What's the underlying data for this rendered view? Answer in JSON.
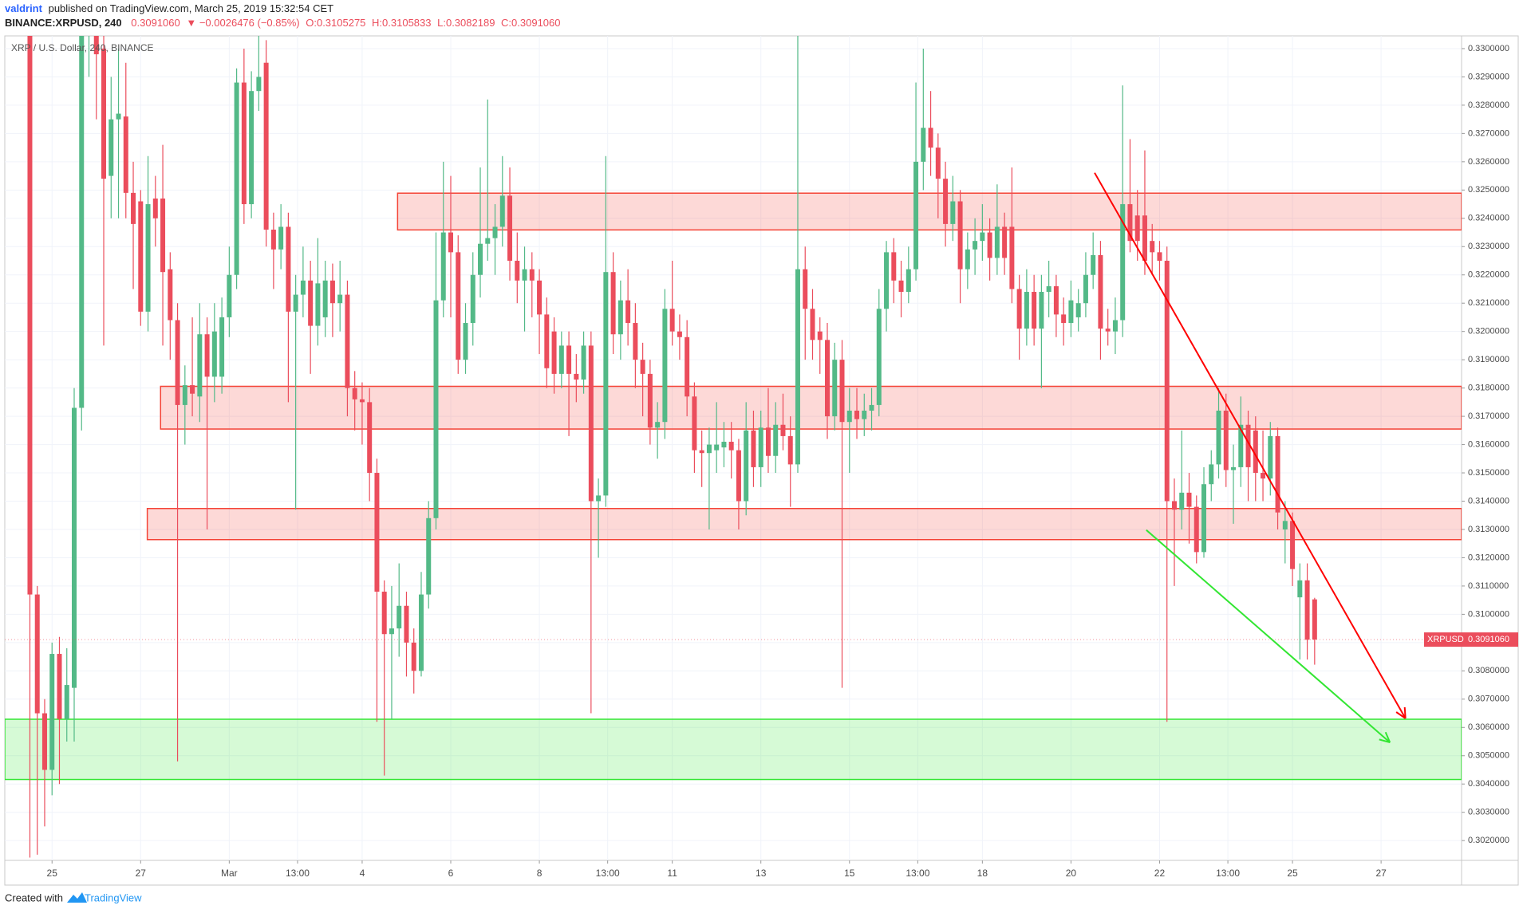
{
  "header": {
    "author": "valdrint",
    "published": "published on TradingView.com, March 25, 2019 15:32:54 CET",
    "symbol": "BINANCE:XRPUSD, 240",
    "price": "0.3091060",
    "change": "▼ −0.0026476 (−0.85%)",
    "open": "O:0.3105275",
    "high": "H:0.3105833",
    "low": "L:0.3082189",
    "close": "C:0.3091060"
  },
  "footer": {
    "created": "Created with",
    "brand": "TradingView"
  },
  "chart_data": {
    "type": "candlestick",
    "title": "XRP / U.S. Dollar, 240, BINANCE",
    "up_color": "#53b987",
    "down_color": "#eb4d5c",
    "grid": true,
    "xlim": [
      -3.4,
      193.9
    ],
    "ylim": [
      0.3013,
      0.33045
    ],
    "xticks": [
      {
        "value": 3,
        "label": "25"
      },
      {
        "value": 15,
        "label": "27"
      },
      {
        "value": 27,
        "label": "Mar"
      },
      {
        "value": 36.25,
        "label": "13:00"
      },
      {
        "value": 45,
        "label": "4"
      },
      {
        "value": 57,
        "label": "6"
      },
      {
        "value": 69,
        "label": "8"
      },
      {
        "value": 78.25,
        "label": "13:00"
      },
      {
        "value": 87,
        "label": "11"
      },
      {
        "value": 99,
        "label": "13"
      },
      {
        "value": 111,
        "label": "15"
      },
      {
        "value": 120.25,
        "label": "13:00"
      },
      {
        "value": 129,
        "label": "18"
      },
      {
        "value": 141,
        "label": "20"
      },
      {
        "value": 153,
        "label": "22"
      },
      {
        "value": 162.25,
        "label": "13:00"
      },
      {
        "value": 171,
        "label": "25"
      },
      {
        "value": 183,
        "label": "27"
      }
    ],
    "yticks": [
      {
        "value": 0.302,
        "label": "0.3020000"
      },
      {
        "value": 0.303,
        "label": "0.3030000"
      },
      {
        "value": 0.304,
        "label": "0.3040000"
      },
      {
        "value": 0.305,
        "label": "0.3050000"
      },
      {
        "value": 0.306,
        "label": "0.3060000"
      },
      {
        "value": 0.307,
        "label": "0.3070000"
      },
      {
        "value": 0.308,
        "label": "0.3080000"
      },
      {
        "value": 0.309,
        "label": "0.3090000"
      },
      {
        "value": 0.31,
        "label": "0.3100000"
      },
      {
        "value": 0.311,
        "label": "0.3110000"
      },
      {
        "value": 0.312,
        "label": "0.3120000"
      },
      {
        "value": 0.313,
        "label": "0.3130000"
      },
      {
        "value": 0.314,
        "label": "0.3140000"
      },
      {
        "value": 0.315,
        "label": "0.3150000"
      },
      {
        "value": 0.316,
        "label": "0.3160000"
      },
      {
        "value": 0.317,
        "label": "0.3170000"
      },
      {
        "value": 0.318,
        "label": "0.3180000"
      },
      {
        "value": 0.319,
        "label": "0.3190000"
      },
      {
        "value": 0.32,
        "label": "0.3200000"
      },
      {
        "value": 0.321,
        "label": "0.3210000"
      },
      {
        "value": 0.322,
        "label": "0.3220000"
      },
      {
        "value": 0.323,
        "label": "0.3230000"
      },
      {
        "value": 0.324,
        "label": "0.3240000"
      },
      {
        "value": 0.325,
        "label": "0.3250000"
      },
      {
        "value": 0.326,
        "label": "0.3260000"
      },
      {
        "value": 0.327,
        "label": "0.3270000"
      },
      {
        "value": 0.328,
        "label": "0.3280000"
      },
      {
        "value": 0.329,
        "label": "0.3290000"
      },
      {
        "value": 0.33,
        "label": "0.3300000"
      }
    ],
    "last_price": {
      "name": "XRPUSD",
      "value": 0.309106,
      "label": "0.3091060",
      "color": "#eb4d5c"
    },
    "zones": [
      {
        "from": 0.32359,
        "to": 0.32489,
        "start": 49.8,
        "color": "#f44336"
      },
      {
        "from": 0.31655,
        "to": 0.31806,
        "start": 17.7,
        "color": "#f44336"
      },
      {
        "from": 0.31264,
        "to": 0.31374,
        "start": 15.9,
        "color": "#f44336"
      },
      {
        "from": 0.30416,
        "to": 0.30629,
        "color": "#33e633"
      }
    ],
    "trend_lines": [
      {
        "x": [
          144.2,
          186.3
        ],
        "y": [
          0.32561,
          0.30632
        ],
        "color": "#ff0000"
      },
      {
        "x": [
          151.2,
          184.2
        ],
        "y": [
          0.31298,
          0.30547
        ],
        "color": "#33e633"
      }
    ],
    "ohlc": [
      [
        0.332,
        0.333,
        0.3014,
        0.3107
      ],
      [
        0.3107,
        0.311,
        0.3015,
        0.3065
      ],
      [
        0.3065,
        0.307,
        0.3025,
        0.3045
      ],
      [
        0.3045,
        0.309,
        0.3036,
        0.3086
      ],
      [
        0.3086,
        0.3092,
        0.304,
        0.3063
      ],
      [
        0.3063,
        0.3088,
        0.3055,
        0.3075
      ],
      [
        0.3074,
        0.318,
        0.3055,
        0.3173
      ],
      [
        0.3173,
        0.333,
        0.3165,
        0.331
      ],
      [
        0.3305,
        0.333,
        0.329,
        0.3312
      ],
      [
        0.3305,
        0.332,
        0.3275,
        0.3298
      ],
      [
        0.33,
        0.331,
        0.3195,
        0.3254
      ],
      [
        0.3255,
        0.329,
        0.324,
        0.3275
      ],
      [
        0.3275,
        0.33,
        0.324,
        0.3277
      ],
      [
        0.3276,
        0.3295,
        0.324,
        0.3249
      ],
      [
        0.3249,
        0.326,
        0.3215,
        0.3238
      ],
      [
        0.3246,
        0.325,
        0.3202,
        0.3207
      ],
      [
        0.3207,
        0.3262,
        0.32,
        0.3245
      ],
      [
        0.3247,
        0.3255,
        0.323,
        0.324
      ],
      [
        0.3247,
        0.3266,
        0.3195,
        0.3221
      ],
      [
        0.3222,
        0.3228,
        0.319,
        0.3204
      ],
      [
        0.3204,
        0.321,
        0.3048,
        0.3174
      ],
      [
        0.3174,
        0.3188,
        0.316,
        0.3181
      ],
      [
        0.3181,
        0.3205,
        0.317,
        0.3178
      ],
      [
        0.3177,
        0.321,
        0.3168,
        0.3199
      ],
      [
        0.3199,
        0.3205,
        0.313,
        0.3184
      ],
      [
        0.3184,
        0.321,
        0.3175,
        0.32
      ],
      [
        0.3184,
        0.3212,
        0.3178,
        0.3205
      ],
      [
        0.3205,
        0.323,
        0.3198,
        0.322
      ],
      [
        0.322,
        0.3293,
        0.3215,
        0.3288
      ],
      [
        0.3288,
        0.33,
        0.3238,
        0.3245
      ],
      [
        0.3245,
        0.3292,
        0.324,
        0.3285
      ],
      [
        0.3285,
        0.3305,
        0.3278,
        0.329
      ],
      [
        0.3295,
        0.3303,
        0.323,
        0.3236
      ],
      [
        0.3236,
        0.3242,
        0.3215,
        0.3229
      ],
      [
        0.3229,
        0.3245,
        0.3222,
        0.3237
      ],
      [
        0.3237,
        0.3242,
        0.3175,
        0.3207
      ],
      [
        0.3207,
        0.322,
        0.3137,
        0.3213
      ],
      [
        0.3213,
        0.323,
        0.3205,
        0.3218
      ],
      [
        0.3218,
        0.3225,
        0.3185,
        0.3202
      ],
      [
        0.3202,
        0.3233,
        0.3195,
        0.3217
      ],
      [
        0.3205,
        0.3225,
        0.3198,
        0.3218
      ],
      [
        0.3218,
        0.3224,
        0.3198,
        0.321
      ],
      [
        0.321,
        0.3225,
        0.32,
        0.3213
      ],
      [
        0.3213,
        0.3218,
        0.317,
        0.318
      ],
      [
        0.318,
        0.3186,
        0.3165,
        0.3176
      ],
      [
        0.3176,
        0.3182,
        0.316,
        0.3175
      ],
      [
        0.3175,
        0.318,
        0.314,
        0.315
      ],
      [
        0.315,
        0.3155,
        0.3062,
        0.3108
      ],
      [
        0.3108,
        0.3112,
        0.3043,
        0.3093
      ],
      [
        0.3093,
        0.311,
        0.3063,
        0.3095
      ],
      [
        0.3095,
        0.3118,
        0.3085,
        0.3103
      ],
      [
        0.3103,
        0.3108,
        0.3078,
        0.309
      ],
      [
        0.309,
        0.3095,
        0.3072,
        0.308
      ],
      [
        0.308,
        0.3115,
        0.3078,
        0.3107
      ],
      [
        0.3107,
        0.314,
        0.3102,
        0.3134
      ],
      [
        0.3134,
        0.3235,
        0.313,
        0.3211
      ],
      [
        0.3211,
        0.326,
        0.3205,
        0.3235
      ],
      [
        0.3235,
        0.3255,
        0.3205,
        0.3228
      ],
      [
        0.3228,
        0.3234,
        0.3185,
        0.319
      ],
      [
        0.319,
        0.321,
        0.3185,
        0.3203
      ],
      [
        0.3203,
        0.3228,
        0.3195,
        0.322
      ],
      [
        0.322,
        0.3258,
        0.3212,
        0.3231
      ],
      [
        0.3231,
        0.3282,
        0.3225,
        0.3233
      ],
      [
        0.3233,
        0.3245,
        0.322,
        0.3237
      ],
      [
        0.3237,
        0.3262,
        0.323,
        0.3248
      ],
      [
        0.3248,
        0.3258,
        0.3218,
        0.3225
      ],
      [
        0.3225,
        0.3235,
        0.321,
        0.3218
      ],
      [
        0.3218,
        0.323,
        0.32,
        0.3222
      ],
      [
        0.3222,
        0.3228,
        0.3205,
        0.3218
      ],
      [
        0.3218,
        0.3222,
        0.3192,
        0.3206
      ],
      [
        0.3206,
        0.3212,
        0.318,
        0.3187
      ],
      [
        0.32,
        0.3205,
        0.3178,
        0.3185
      ],
      [
        0.3185,
        0.32,
        0.318,
        0.3195
      ],
      [
        0.3195,
        0.32,
        0.3163,
        0.3185
      ],
      [
        0.3185,
        0.3192,
        0.3175,
        0.3183
      ],
      [
        0.3183,
        0.32,
        0.3178,
        0.3195
      ],
      [
        0.3195,
        0.32,
        0.3065,
        0.314
      ],
      [
        0.314,
        0.3148,
        0.312,
        0.3142
      ],
      [
        0.3142,
        0.3262,
        0.3138,
        0.3221
      ],
      [
        0.3221,
        0.3228,
        0.3192,
        0.3199
      ],
      [
        0.3199,
        0.3218,
        0.319,
        0.3211
      ],
      [
        0.3211,
        0.3222,
        0.3195,
        0.3203
      ],
      [
        0.3203,
        0.321,
        0.318,
        0.319
      ],
      [
        0.319,
        0.3196,
        0.317,
        0.3185
      ],
      [
        0.3185,
        0.319,
        0.316,
        0.3166
      ],
      [
        0.3166,
        0.3175,
        0.3155,
        0.3168
      ],
      [
        0.3168,
        0.3215,
        0.3162,
        0.3208
      ],
      [
        0.3208,
        0.3225,
        0.3195,
        0.32
      ],
      [
        0.32,
        0.3206,
        0.319,
        0.3198
      ],
      [
        0.3198,
        0.3204,
        0.317,
        0.3177
      ],
      [
        0.3177,
        0.3182,
        0.315,
        0.3158
      ],
      [
        0.3158,
        0.3165,
        0.3145,
        0.3157
      ],
      [
        0.3157,
        0.3166,
        0.313,
        0.316
      ],
      [
        0.3158,
        0.3175,
        0.315,
        0.316
      ],
      [
        0.3159,
        0.3168,
        0.3152,
        0.3161
      ],
      [
        0.3161,
        0.3168,
        0.3148,
        0.3158
      ],
      [
        0.3158,
        0.3162,
        0.313,
        0.314
      ],
      [
        0.314,
        0.3175,
        0.3135,
        0.3165
      ],
      [
        0.3165,
        0.3172,
        0.3145,
        0.3152
      ],
      [
        0.3152,
        0.3172,
        0.3145,
        0.3166
      ],
      [
        0.3166,
        0.318,
        0.315,
        0.3156
      ],
      [
        0.3156,
        0.3175,
        0.315,
        0.3167
      ],
      [
        0.3167,
        0.3178,
        0.3158,
        0.3163
      ],
      [
        0.3163,
        0.317,
        0.3138,
        0.3153
      ],
      [
        0.3153,
        0.3305,
        0.315,
        0.3222
      ],
      [
        0.3222,
        0.323,
        0.319,
        0.3208
      ],
      [
        0.3208,
        0.3215,
        0.319,
        0.3197
      ],
      [
        0.32,
        0.3205,
        0.3185,
        0.3197
      ],
      [
        0.3197,
        0.3203,
        0.3162,
        0.317
      ],
      [
        0.317,
        0.3196,
        0.3165,
        0.319
      ],
      [
        0.319,
        0.3197,
        0.3074,
        0.3168
      ],
      [
        0.3168,
        0.318,
        0.315,
        0.3172
      ],
      [
        0.3172,
        0.318,
        0.3162,
        0.3169
      ],
      [
        0.3169,
        0.3178,
        0.3163,
        0.3172
      ],
      [
        0.3172,
        0.318,
        0.3165,
        0.3174
      ],
      [
        0.3174,
        0.3215,
        0.317,
        0.3208
      ],
      [
        0.3208,
        0.3232,
        0.32,
        0.3228
      ],
      [
        0.3228,
        0.3233,
        0.321,
        0.3218
      ],
      [
        0.3218,
        0.3225,
        0.3205,
        0.3214
      ],
      [
        0.3214,
        0.323,
        0.321,
        0.3222
      ],
      [
        0.3222,
        0.3288,
        0.3218,
        0.326
      ],
      [
        0.326,
        0.33,
        0.325,
        0.3272
      ],
      [
        0.3272,
        0.3285,
        0.3255,
        0.3265
      ],
      [
        0.3265,
        0.327,
        0.324,
        0.3254
      ],
      [
        0.3254,
        0.326,
        0.323,
        0.3238
      ],
      [
        0.3238,
        0.3255,
        0.3232,
        0.3246
      ],
      [
        0.3246,
        0.325,
        0.321,
        0.3222
      ],
      [
        0.3222,
        0.3235,
        0.3215,
        0.3229
      ],
      [
        0.3229,
        0.324,
        0.322,
        0.3232
      ],
      [
        0.3232,
        0.3245,
        0.3225,
        0.3235
      ],
      [
        0.3235,
        0.324,
        0.3218,
        0.3226
      ],
      [
        0.3226,
        0.3252,
        0.322,
        0.3237
      ],
      [
        0.3237,
        0.3242,
        0.322,
        0.3226
      ],
      [
        0.3237,
        0.3258,
        0.321,
        0.3215
      ],
      [
        0.3215,
        0.322,
        0.319,
        0.3201
      ],
      [
        0.3201,
        0.3222,
        0.3195,
        0.3214
      ],
      [
        0.3214,
        0.322,
        0.3195,
        0.3201
      ],
      [
        0.3201,
        0.322,
        0.318,
        0.3214
      ],
      [
        0.3214,
        0.3225,
        0.3205,
        0.3216
      ],
      [
        0.3216,
        0.322,
        0.3198,
        0.3206
      ],
      [
        0.3206,
        0.3212,
        0.3195,
        0.3203
      ],
      [
        0.3203,
        0.3218,
        0.3198,
        0.3211
      ],
      [
        0.3205,
        0.3215,
        0.32,
        0.321
      ],
      [
        0.321,
        0.3228,
        0.3205,
        0.322
      ],
      [
        0.322,
        0.3235,
        0.3215,
        0.3227
      ],
      [
        0.3227,
        0.3232,
        0.319,
        0.3201
      ],
      [
        0.3201,
        0.3208,
        0.3195,
        0.32
      ],
      [
        0.32,
        0.3212,
        0.3192,
        0.3204
      ],
      [
        0.3204,
        0.3287,
        0.3198,
        0.3245
      ],
      [
        0.3245,
        0.3268,
        0.3228,
        0.3232
      ],
      [
        0.3241,
        0.325,
        0.3225,
        0.3232
      ],
      [
        0.3241,
        0.3264,
        0.322,
        0.3225
      ],
      [
        0.3232,
        0.3238,
        0.322,
        0.3228
      ],
      [
        0.3228,
        0.3232,
        0.3218,
        0.3225
      ],
      [
        0.3225,
        0.323,
        0.3062,
        0.314
      ],
      [
        0.314,
        0.3148,
        0.311,
        0.3137
      ],
      [
        0.3137,
        0.3165,
        0.313,
        0.3143
      ],
      [
        0.3143,
        0.315,
        0.3125,
        0.3138
      ],
      [
        0.3138,
        0.3142,
        0.3118,
        0.3122
      ],
      [
        0.3122,
        0.3152,
        0.312,
        0.3146
      ],
      [
        0.3146,
        0.3158,
        0.314,
        0.3153
      ],
      [
        0.3153,
        0.318,
        0.3148,
        0.3172
      ],
      [
        0.3172,
        0.3178,
        0.3145,
        0.3151
      ],
      [
        0.3151,
        0.316,
        0.3132,
        0.3152
      ],
      [
        0.3152,
        0.3177,
        0.3145,
        0.3167
      ],
      [
        0.3167,
        0.3172,
        0.314,
        0.3152
      ],
      [
        0.3165,
        0.317,
        0.314,
        0.315
      ],
      [
        0.315,
        0.3165,
        0.314,
        0.3148
      ],
      [
        0.3148,
        0.3168,
        0.3142,
        0.3163
      ],
      [
        0.3163,
        0.3166,
        0.313,
        0.3136
      ],
      [
        0.313,
        0.314,
        0.3118,
        0.3133
      ],
      [
        0.3133,
        0.3136,
        0.311,
        0.3116
      ],
      [
        0.3106,
        0.3118,
        0.3084,
        0.3112
      ],
      [
        0.3112,
        0.3118,
        0.3084,
        0.3091
      ],
      [
        0.3105275,
        0.3105833,
        0.3082189,
        0.309106
      ]
    ]
  }
}
